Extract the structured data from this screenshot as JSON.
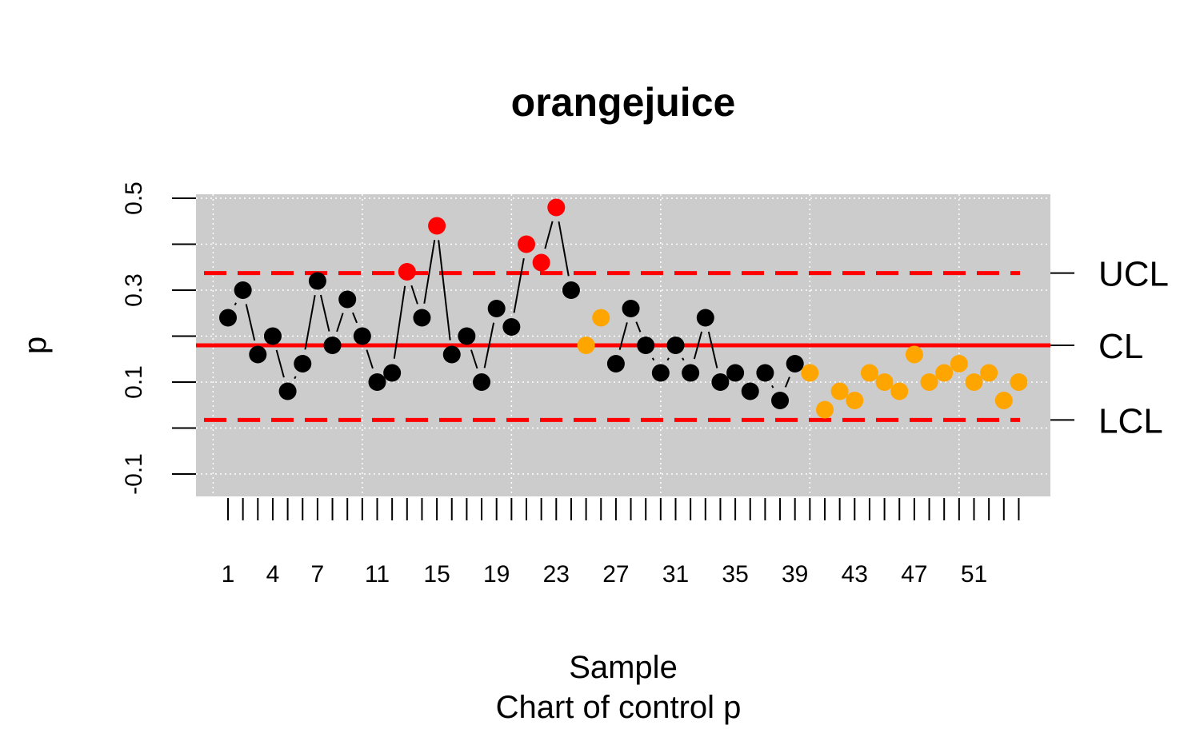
{
  "chart_data": {
    "type": "scatter",
    "title": "orangejuice",
    "xlabel": "Sample",
    "subtitle": "Chart of control p",
    "ylabel": "p",
    "xlim": [
      0,
      54
    ],
    "ylim": [
      -0.14,
      0.52
    ],
    "y_ticks": [
      -0.1,
      0.1,
      0.3,
      0.5
    ],
    "y_tick_labels": [
      "-0.1",
      "0.1",
      "0.3",
      "0.5"
    ],
    "y_minor_ticks": [
      0.0,
      0.2,
      0.4
    ],
    "x_tick_labels": [
      "1",
      "4",
      "7",
      "11",
      "15",
      "19",
      "23",
      "27",
      "31",
      "35",
      "39",
      "43",
      "47",
      "51"
    ],
    "x_tick_label_positions": [
      1,
      4,
      7,
      11,
      15,
      19,
      23,
      27,
      31,
      35,
      39,
      43,
      47,
      51
    ],
    "grid": true,
    "limits": {
      "UCL": 0.3372,
      "CL": 0.18,
      "LCL": 0.0176
    },
    "limit_labels": [
      "UCL",
      "CL",
      "LCL"
    ],
    "colors": {
      "in_control": "#000000",
      "out_of_control": "#ff0000",
      "new_data": "#ffa500",
      "center_line": "#ff0000",
      "limit_line": "#ff0000",
      "panel_background": "#cccccc"
    },
    "x": [
      1,
      2,
      3,
      4,
      5,
      6,
      7,
      8,
      9,
      10,
      11,
      12,
      13,
      14,
      15,
      16,
      17,
      18,
      19,
      20,
      21,
      22,
      23,
      24,
      25,
      26,
      27,
      28,
      29,
      30,
      31,
      32,
      33,
      34,
      35,
      36,
      37,
      38,
      39,
      40,
      41,
      42,
      43,
      44,
      45,
      46,
      47,
      48,
      49,
      50,
      51,
      52,
      53,
      54
    ],
    "values": [
      0.24,
      0.3,
      0.16,
      0.2,
      0.08,
      0.14,
      0.32,
      0.18,
      0.28,
      0.2,
      0.1,
      0.12,
      0.34,
      0.24,
      0.44,
      0.16,
      0.2,
      0.1,
      0.26,
      0.22,
      0.4,
      0.36,
      0.48,
      0.3,
      0.18,
      0.24,
      0.14,
      0.26,
      0.18,
      0.12,
      0.18,
      0.12,
      0.24,
      0.1,
      0.12,
      0.08,
      0.12,
      0.06,
      0.14,
      0.12,
      0.04,
      0.08,
      0.06,
      0.12,
      0.1,
      0.08,
      0.16,
      0.1,
      0.12,
      0.14,
      0.1,
      0.12,
      0.06,
      0.1
    ],
    "point_status": [
      "in",
      "in",
      "in",
      "in",
      "in",
      "in",
      "in",
      "in",
      "in",
      "in",
      "in",
      "in",
      "out",
      "in",
      "out",
      "in",
      "in",
      "in",
      "in",
      "in",
      "out",
      "out",
      "out",
      "in",
      "new",
      "new",
      "in",
      "in",
      "in",
      "in",
      "in",
      "in",
      "in",
      "in",
      "in",
      "in",
      "in",
      "in",
      "in",
      "new",
      "new",
      "new",
      "new",
      "new",
      "new",
      "new",
      "new",
      "new",
      "new",
      "new",
      "new",
      "new",
      "new",
      "new"
    ]
  }
}
